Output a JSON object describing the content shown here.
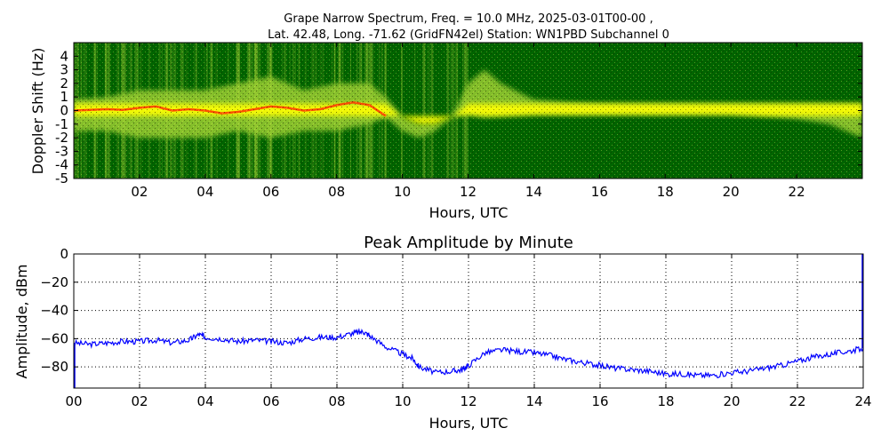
{
  "figure": {
    "spectrum_title_line1": "Grape Narrow Spectrum, Freq. = 10.0 MHz, 2025-03-01T00-00 ,",
    "spectrum_title_line2": "Lat.  42.48, Long. -71.62 (GridFN42el) Station: WN1PBD Subchannel 0",
    "amplitude_title": "Peak Amplitude by Minute"
  },
  "colors": {
    "spectrum_background": "#006400",
    "spectrum_mid": "#9acd32",
    "spectrum_high": "#ffff00",
    "spectrum_peak": "#ff3300",
    "amplitude_line": "#0000ff",
    "grid": "#000000"
  },
  "chart_data": [
    {
      "type": "heatmap",
      "title": "Grape Narrow Spectrum, Freq. = 10.0 MHz, 2025-03-01T00-00 , Lat.  42.48, Long. -71.62 (GridFN42el) Station: WN1PBD Subchannel 0",
      "xlabel": "Hours, UTC",
      "ylabel": "Doppler Shift (Hz)",
      "xlim": [
        0,
        24
      ],
      "ylim": [
        -5,
        5
      ],
      "x_ticks": [
        "02",
        "04",
        "06",
        "08",
        "10",
        "12",
        "14",
        "16",
        "18",
        "20",
        "22"
      ],
      "x_tick_values": [
        2,
        4,
        6,
        8,
        10,
        12,
        14,
        16,
        18,
        20,
        22
      ],
      "y_ticks": [
        "4",
        "3",
        "2",
        "1",
        "0",
        "-1",
        "-2",
        "-3",
        "-4",
        "-5"
      ],
      "y_tick_values": [
        4,
        3,
        2,
        1,
        0,
        -1,
        -2,
        -3,
        -4,
        -5
      ],
      "peak_trace": {
        "hours": [
          0,
          0.5,
          1,
          1.5,
          2,
          2.5,
          3,
          3.5,
          4,
          4.5,
          5,
          5.5,
          6,
          6.5,
          7,
          7.5,
          8,
          8.5,
          9,
          9.5
        ],
        "doppler": [
          0.0,
          0.05,
          0.1,
          0.05,
          0.2,
          0.3,
          0.0,
          0.1,
          0.0,
          -0.2,
          -0.1,
          0.1,
          0.3,
          0.2,
          0.0,
          0.1,
          0.4,
          0.6,
          0.4,
          -0.4
        ]
      },
      "spread_band": {
        "hours": [
          0,
          1,
          2,
          3,
          4,
          5,
          6,
          7,
          8,
          9,
          9.5,
          10,
          10.5,
          11,
          11.5,
          12,
          12.5,
          13,
          14,
          15,
          16,
          17,
          18,
          19,
          20,
          21,
          22,
          23,
          24
        ],
        "upper_hz": [
          0.8,
          1.0,
          1.5,
          1.5,
          1.5,
          2.0,
          2.5,
          1.5,
          2.0,
          2.0,
          1.0,
          -0.5,
          -1.0,
          -1.0,
          -0.5,
          2.0,
          3.0,
          2.0,
          0.8,
          0.6,
          0.5,
          0.5,
          0.5,
          0.5,
          0.5,
          0.5,
          0.5,
          0.5,
          0.5
        ],
        "lower_hz": [
          -1.5,
          -1.5,
          -2.0,
          -2.0,
          -2.0,
          -1.5,
          -2.0,
          -1.5,
          -1.5,
          -1.0,
          -0.5,
          -1.5,
          -2.0,
          -1.5,
          -0.5,
          -0.3,
          -0.5,
          -0.4,
          -0.3,
          -0.3,
          -0.3,
          -0.3,
          -0.3,
          -0.3,
          -0.3,
          -0.4,
          -0.6,
          -1.0,
          -2.0
        ]
      }
    },
    {
      "type": "line",
      "title": "Peak Amplitude by Minute",
      "xlabel": "Hours, UTC",
      "ylabel": "Amplitude, dBm",
      "xlim": [
        0,
        24
      ],
      "ylim": [
        -95,
        0
      ],
      "grid": true,
      "x_ticks": [
        "00",
        "02",
        "04",
        "06",
        "08",
        "10",
        "12",
        "14",
        "16",
        "18",
        "20",
        "22",
        "24"
      ],
      "x_tick_values": [
        0,
        2,
        4,
        6,
        8,
        10,
        12,
        14,
        16,
        18,
        20,
        22,
        24
      ],
      "y_ticks": [
        "0",
        "−20",
        "−40",
        "−60",
        "−80"
      ],
      "y_tick_values": [
        0,
        -20,
        -40,
        -60,
        -80
      ],
      "series": [
        {
          "x": [
            0,
            0.5,
            1,
            1.5,
            2,
            2.5,
            3,
            3.5,
            3.8,
            4,
            4.5,
            5,
            5.5,
            6,
            6.5,
            7,
            7.5,
            8,
            8.5,
            8.8,
            9,
            9.5,
            10,
            10.3,
            10.5,
            11,
            11.5,
            11.8,
            12,
            12.5,
            13,
            13.5,
            14,
            14.5,
            15,
            15.5,
            16,
            16.5,
            17,
            17.5,
            18,
            18.5,
            19,
            19.5,
            20,
            20.5,
            21,
            21.5,
            22,
            22.5,
            23,
            23.5,
            24
          ],
          "y": [
            -63,
            -64,
            -63,
            -62,
            -62,
            -61,
            -63,
            -61,
            -57,
            -59,
            -60,
            -62,
            -61,
            -62,
            -63,
            -60,
            -59,
            -59,
            -56,
            -55,
            -58,
            -66,
            -71,
            -74,
            -80,
            -84,
            -83,
            -82,
            -79,
            -70,
            -68,
            -69,
            -70,
            -72,
            -75,
            -77,
            -79,
            -81,
            -82,
            -83,
            -85,
            -85,
            -86,
            -86,
            -84,
            -83,
            -81,
            -79,
            -76,
            -73,
            -71,
            -69,
            -67
          ]
        }
      ]
    }
  ]
}
